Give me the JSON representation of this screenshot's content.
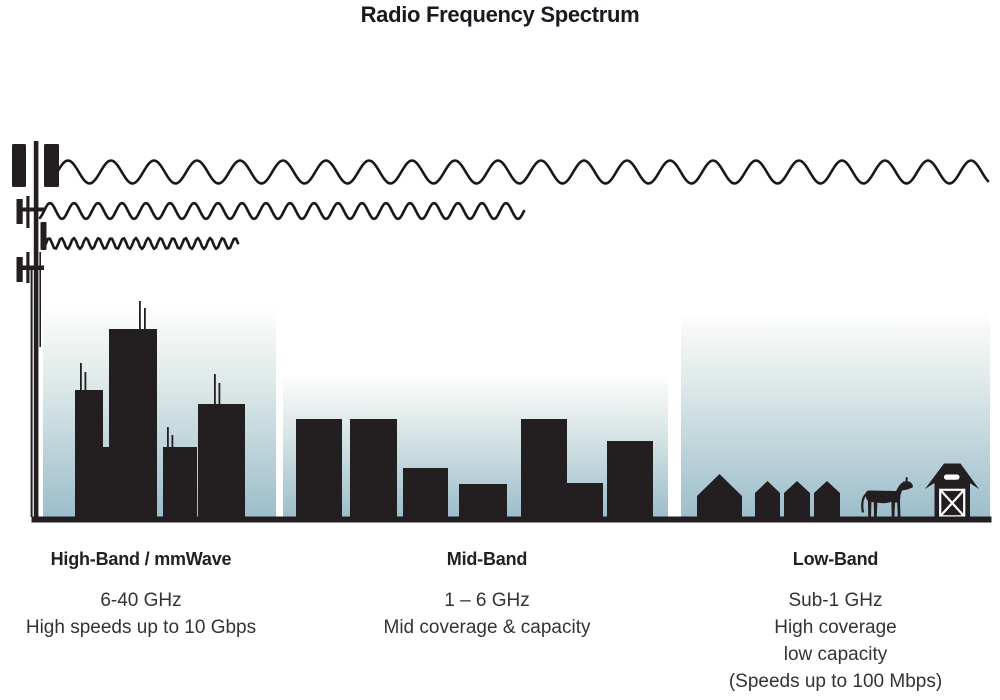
{
  "title": "Radio Frequency Spectrum",
  "tower": {
    "icon": "cell-tower-icon"
  },
  "waves": [
    {
      "name": "long-wavelength-wave",
      "reaches_band": "Low-Band",
      "relative_frequency": "low"
    },
    {
      "name": "medium-wavelength-wave",
      "reaches_band": "Mid-Band",
      "relative_frequency": "medium"
    },
    {
      "name": "short-wavelength-wave",
      "reaches_band": "High-Band",
      "relative_frequency": "high"
    }
  ],
  "bands": [
    {
      "label": "High-Band / mmWave",
      "frequency": "6-40 GHz",
      "details": [
        "High speeds up to 10 Gbps"
      ],
      "scene": "dense-city-skyscrapers"
    },
    {
      "label": "Mid-Band",
      "frequency": "1 – 6 GHz",
      "details": [
        "Mid coverage & capacity"
      ],
      "scene": "mid-rise-buildings"
    },
    {
      "label": "Low-Band",
      "frequency": "Sub-1 GHz",
      "details": [
        "High coverage",
        "low capacity",
        "(Speeds up to 100 Mbps)"
      ],
      "scene": "rural-houses-cow-barn"
    }
  ],
  "colors": {
    "ink": "#231f20",
    "wave_stroke": "#1c1819",
    "sky_gradient_top": "#ffffff",
    "sky_gradient_bottom": "#9cbecb",
    "text": "#363233"
  }
}
